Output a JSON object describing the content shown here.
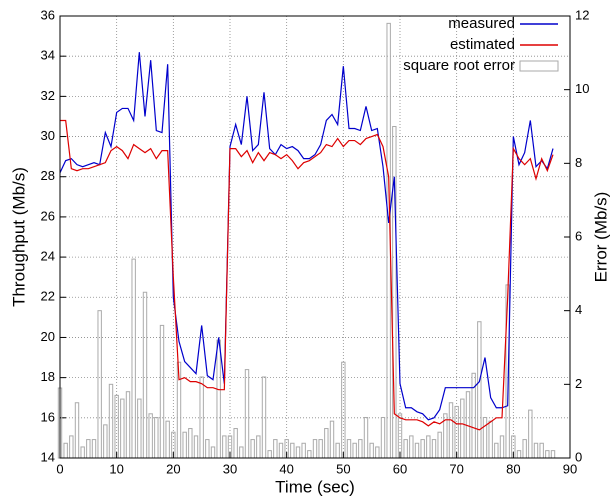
{
  "chart_data": {
    "type": "line",
    "x_label": "Time (sec)",
    "y_label": "Throughput (Mb/s)",
    "y2_label": "Error (Mb/s)",
    "x": [
      0,
      1,
      2,
      3,
      4,
      5,
      6,
      7,
      8,
      9,
      10,
      11,
      12,
      13,
      14,
      15,
      16,
      17,
      18,
      19,
      20,
      21,
      22,
      23,
      24,
      25,
      26,
      27,
      28,
      29,
      30,
      31,
      32,
      33,
      34,
      35,
      36,
      37,
      38,
      39,
      40,
      41,
      42,
      43,
      44,
      45,
      46,
      47,
      48,
      49,
      50,
      51,
      52,
      53,
      54,
      55,
      56,
      57,
      58,
      59,
      60,
      61,
      62,
      63,
      64,
      65,
      66,
      67,
      68,
      69,
      70,
      71,
      72,
      73,
      74,
      75,
      76,
      77,
      78,
      79,
      80,
      81,
      82,
      83,
      84,
      85,
      86,
      87
    ],
    "series": [
      {
        "name": "measured",
        "color": "#0000cc",
        "type": "line",
        "values": [
          28.2,
          28.8,
          28.9,
          28.6,
          28.5,
          28.6,
          28.7,
          28.6,
          30.2,
          29.5,
          31.2,
          31.4,
          31.4,
          30.8,
          34.2,
          31.0,
          33.8,
          30.3,
          30.2,
          33.6,
          22.0,
          19.8,
          18.8,
          18.5,
          18.2,
          20.6,
          18.1,
          17.9,
          20.0,
          17.7,
          29.5,
          30.6,
          29.6,
          32.0,
          29.3,
          29.6,
          32.2,
          29.4,
          29.1,
          29.6,
          29.4,
          29.5,
          29.3,
          28.9,
          28.9,
          29.1,
          29.6,
          30.8,
          31.1,
          30.6,
          33.5,
          30.4,
          30.4,
          30.3,
          31.5,
          30.3,
          30.4,
          28.5,
          25.7,
          28.0,
          17.7,
          16.5,
          16.5,
          16.3,
          16.2,
          15.9,
          16.0,
          16.4,
          17.5,
          17.5,
          17.5,
          17.5,
          17.5,
          17.5,
          17.8,
          19.0,
          17.0,
          16.5,
          16.5,
          16.6,
          30.0,
          28.6,
          29.2,
          30.8,
          28.5,
          28.8,
          28.4,
          29.4
        ]
      },
      {
        "name": "estimated",
        "color": "#dd0000",
        "type": "line",
        "values": [
          30.8,
          30.8,
          28.4,
          28.3,
          28.4,
          28.4,
          28.5,
          28.6,
          28.7,
          29.3,
          29.5,
          29.3,
          28.9,
          29.6,
          29.4,
          29.2,
          29.4,
          28.9,
          29.3,
          29.3,
          23.0,
          17.9,
          18.0,
          17.8,
          17.8,
          17.7,
          17.5,
          17.5,
          17.4,
          17.4,
          29.4,
          29.4,
          29.0,
          29.3,
          28.7,
          29.2,
          28.8,
          29.2,
          29.1,
          28.9,
          29.1,
          28.8,
          28.4,
          28.7,
          28.8,
          29.0,
          29.2,
          29.6,
          29.5,
          29.9,
          29.5,
          29.8,
          29.8,
          29.6,
          29.9,
          30.0,
          30.1,
          29.5,
          28.0,
          16.2,
          16.0,
          15.9,
          15.9,
          15.9,
          15.8,
          15.6,
          15.8,
          15.7,
          15.9,
          15.9,
          15.7,
          15.7,
          15.6,
          15.5,
          15.4,
          15.6,
          15.8,
          16.0,
          16.0,
          22.0,
          29.4,
          28.9,
          28.6,
          28.9,
          27.9,
          28.9,
          28.3,
          29.1
        ]
      },
      {
        "name": "square root error",
        "color": "#aaaaaa",
        "type": "bar",
        "axis": "y2",
        "values": [
          1.9,
          0.4,
          0.6,
          1.5,
          0.3,
          0.5,
          0.5,
          4.0,
          0.9,
          2.0,
          1.7,
          1.6,
          1.8,
          5.4,
          1.6,
          4.5,
          1.2,
          1.1,
          3.6,
          1.0,
          0.7,
          2.6,
          0.7,
          0.8,
          0.6,
          2.2,
          0.5,
          0.3,
          3.2,
          0.6,
          0.6,
          0.8,
          0.3,
          2.4,
          0.5,
          0.6,
          2.2,
          0.2,
          0.5,
          0.4,
          0.5,
          0.4,
          0.3,
          0.4,
          0.2,
          0.5,
          0.5,
          0.8,
          1.0,
          0.4,
          2.6,
          0.5,
          0.4,
          0.5,
          1.1,
          0.4,
          0.3,
          1.1,
          11.8,
          9.0,
          1.2,
          0.5,
          0.6,
          0.4,
          0.5,
          0.6,
          0.5,
          0.7,
          1.2,
          1.5,
          1.4,
          1.6,
          1.8,
          2.3,
          3.7,
          1.1,
          1.0,
          0.4,
          0.6,
          4.7,
          0.6,
          0.2,
          0.5,
          1.3,
          0.4,
          0.4,
          0.2,
          0.2
        ]
      }
    ],
    "xlim": [
      0,
      90
    ],
    "xticks": [
      0,
      10,
      20,
      30,
      40,
      50,
      60,
      70,
      80,
      90
    ],
    "ylim": [
      14,
      36
    ],
    "yticks": [
      14,
      16,
      18,
      20,
      22,
      24,
      26,
      28,
      30,
      32,
      34,
      36
    ],
    "y2lim": [
      0,
      12
    ],
    "y2ticks": [
      0,
      2,
      4,
      6,
      8,
      10,
      12
    ],
    "grid": true,
    "legend": "top-right"
  }
}
